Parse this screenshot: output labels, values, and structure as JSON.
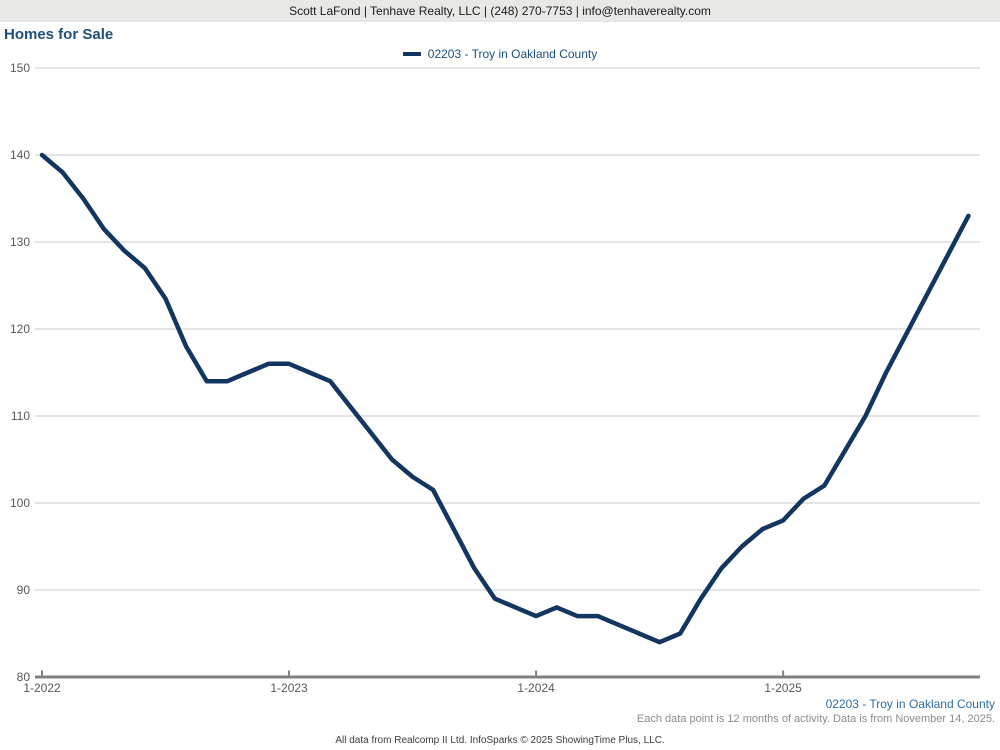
{
  "header": {
    "contact_line": "Scott LaFond | Tenhave Realty, LLC | (248) 270-7753 | info@tenhaverealty.com"
  },
  "title": "Homes for Sale",
  "legend": {
    "label": "02203 - Troy in Oakland County",
    "line_color": "#123660"
  },
  "colors": {
    "title_blue": "#1f4e79",
    "series_navy": "#123660",
    "footer_blue": "#2e6da5",
    "gridline_gray": "#c9c9c9",
    "axis_gray": "#808080",
    "axis_label_gray": "#595959",
    "topbar_gray": "#e8e8e6"
  },
  "chart_data": {
    "type": "line",
    "title": "Homes for Sale",
    "x": [
      "1-2022",
      "2-2022",
      "3-2022",
      "4-2022",
      "5-2022",
      "6-2022",
      "7-2022",
      "8-2022",
      "9-2022",
      "10-2022",
      "11-2022",
      "12-2022",
      "1-2023",
      "2-2023",
      "3-2023",
      "4-2023",
      "5-2023",
      "6-2023",
      "7-2023",
      "8-2023",
      "9-2023",
      "10-2023",
      "11-2023",
      "12-2023",
      "1-2024",
      "2-2024",
      "3-2024",
      "4-2024",
      "5-2024",
      "6-2024",
      "7-2024",
      "8-2024",
      "9-2024",
      "10-2024",
      "11-2024",
      "12-2024",
      "1-2025",
      "2-2025",
      "3-2025",
      "4-2025",
      "5-2025",
      "6-2025",
      "7-2025",
      "8-2025",
      "9-2025",
      "10-2025"
    ],
    "series": [
      {
        "name": "02203 - Troy in Oakland County",
        "color": "#123660",
        "values": [
          140,
          138,
          135,
          131.5,
          129,
          127,
          123.5,
          118,
          114,
          114,
          115,
          116,
          116,
          115,
          114,
          111,
          108,
          105,
          103,
          101.5,
          97,
          92.5,
          89,
          88,
          87,
          88,
          87,
          87,
          86,
          85,
          84,
          85,
          89,
          92.5,
          95,
          97,
          98,
          100.5,
          102,
          106,
          110,
          115,
          119.5,
          124,
          128.5,
          133
        ]
      }
    ],
    "x_tick_labels": [
      "1-2022",
      "1-2023",
      "1-2024",
      "1-2025"
    ],
    "y_ticks": [
      80,
      90,
      100,
      110,
      120,
      130,
      140,
      150
    ],
    "ylim": [
      80,
      150
    ],
    "grid": "horizontal",
    "legend_position": "top-center"
  },
  "footer": {
    "series_caption": "02203 - Troy in Oakland County",
    "note": "Each data point is 12 months of activity. Data is from November 14, 2025.",
    "attribution": "All data from Realcomp II Ltd. InfoSparks © 2025 ShowingTime Plus, LLC."
  }
}
